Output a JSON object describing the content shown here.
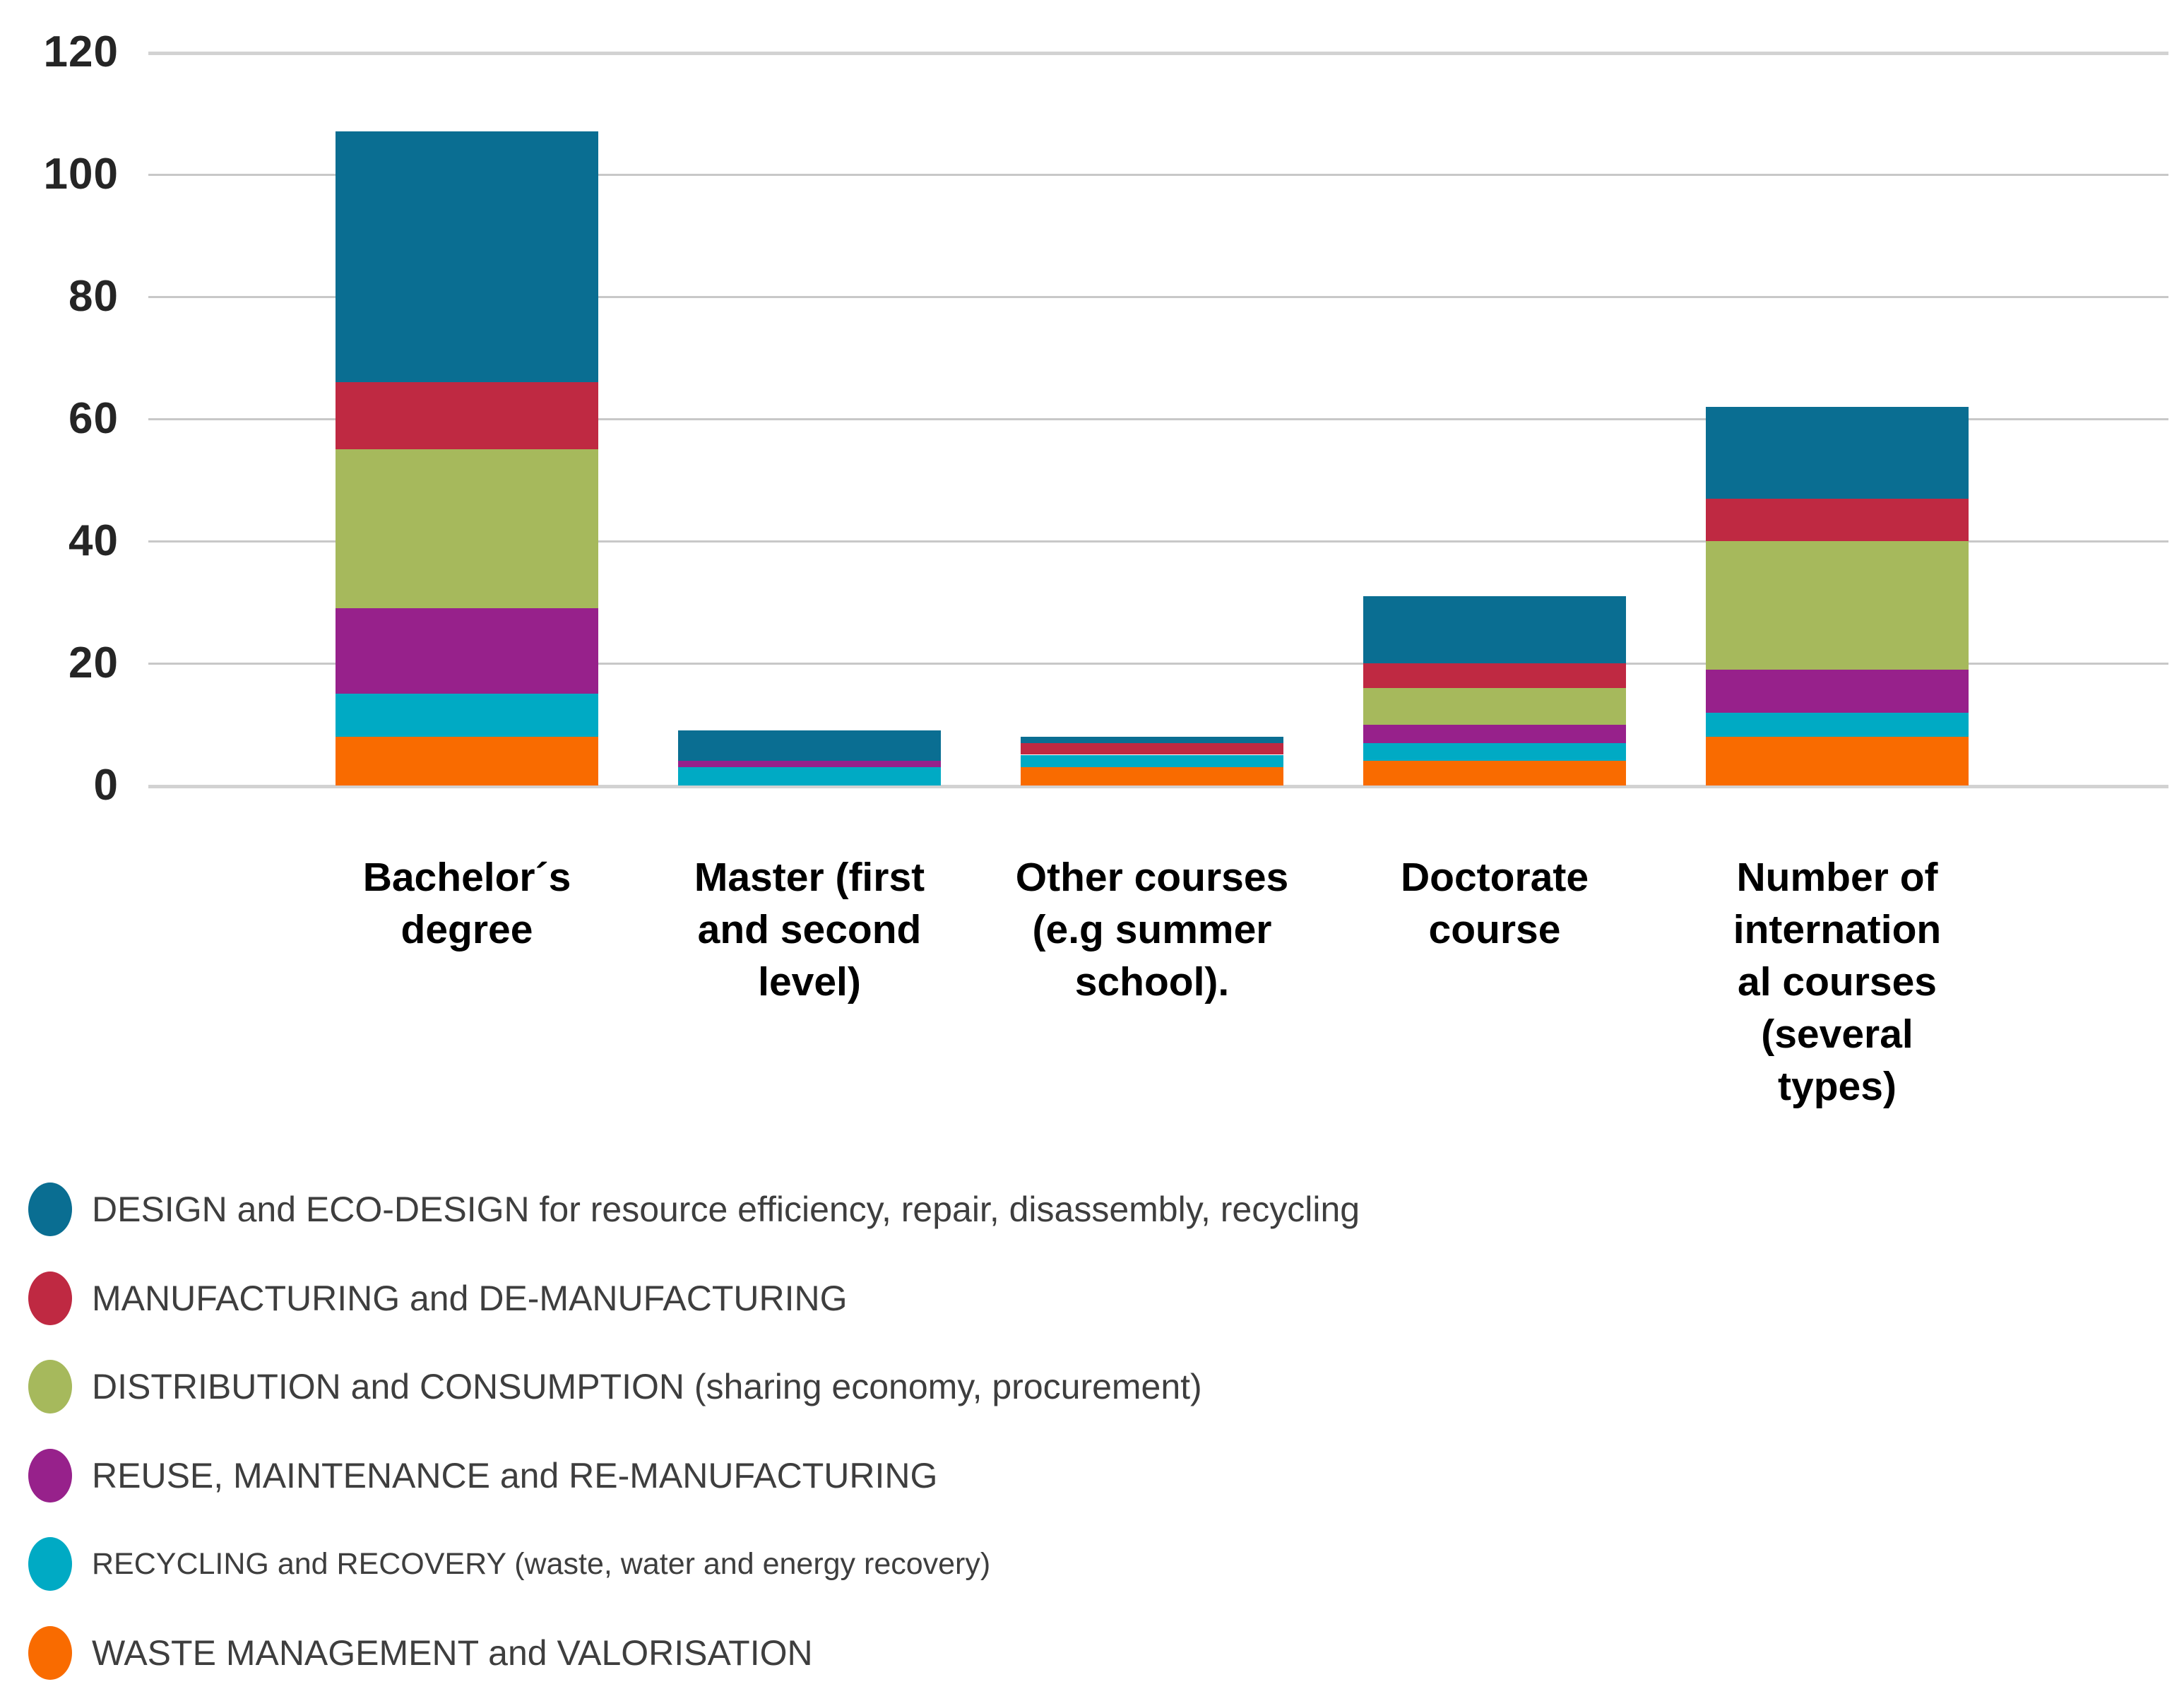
{
  "chart_data": {
    "type": "bar",
    "stacked": true,
    "title": "",
    "xlabel": "",
    "ylabel": "",
    "ylim": [
      0,
      120
    ],
    "yticks": [
      0,
      20,
      40,
      60,
      80,
      100,
      120
    ],
    "grid": "horizontal",
    "legend_position": "bottom-left",
    "categories": [
      "Bachelor´s degree",
      "Master (first and second level)",
      "Other courses (e.g summer school).",
      "Doctorate course",
      "Number of international courses (several types)"
    ],
    "category_label_lines": [
      [
        "Bachelor´s",
        "degree"
      ],
      [
        "Master (first",
        "and second",
        "level)"
      ],
      [
        "Other courses",
        "(e.g summer",
        "school)."
      ],
      [
        "Doctorate",
        "course"
      ],
      [
        "Number of",
        "internation",
        "al courses",
        "(several",
        "types)"
      ]
    ],
    "series": [
      {
        "key": "waste",
        "name": "WASTE MANAGEMENT and VALORISATION",
        "color": "#f96b00",
        "values": [
          8,
          0,
          3,
          4,
          8
        ]
      },
      {
        "key": "recycling",
        "name": "RECYCLING and RECOVERY (waste, water and energy recovery)",
        "color": "#00aac4",
        "values": [
          7,
          3,
          2,
          3,
          4
        ]
      },
      {
        "key": "reuse",
        "name": "REUSE, MAINTENANCE and RE-MANUFACTURING",
        "color": "#97218b",
        "values": [
          14,
          1,
          0,
          3,
          7
        ]
      },
      {
        "key": "distribution",
        "name": "DISTRIBUTION and CONSUMPTION (sharing economy, procurement)",
        "color": "#a6b95c",
        "values": [
          26,
          0,
          0,
          6,
          21
        ]
      },
      {
        "key": "manufacturing",
        "name": "MANUFACTURING and DE-MANUFACTURING",
        "color": "#bf2942",
        "values": [
          11,
          0,
          2,
          4,
          7
        ]
      },
      {
        "key": "design",
        "name": "DESIGN and ECO-DESIGN for resource efficiency, repair, disassembly, recycling",
        "color": "#0a6e92",
        "values": [
          41,
          5,
          1,
          11,
          15
        ]
      }
    ],
    "totals": [
      107,
      9,
      8,
      31,
      62
    ]
  },
  "legend": {
    "items": [
      {
        "key": "design",
        "color": "#0a6e92",
        "label": "DESIGN and ECO-DESIGN for resource efficiency, repair, disassembly, recycling"
      },
      {
        "key": "manufacturing",
        "color": "#bf2942",
        "label": "MANUFACTURING and DE-MANUFACTURING"
      },
      {
        "key": "distribution",
        "color": "#a6b95c",
        "label": "DISTRIBUTION and CONSUMPTION (sharing economy, procurement)"
      },
      {
        "key": "reuse",
        "color": "#97218b",
        "label": "REUSE, MAINTENANCE and RE-MANUFACTURING"
      },
      {
        "key": "recycling",
        "color": "#00aac4",
        "label": "RECYCLING and RECOVERY (waste, water and energy recovery)"
      },
      {
        "key": "waste",
        "color": "#f96b00",
        "label": "WASTE MANAGEMENT and VALORISATION"
      }
    ]
  }
}
